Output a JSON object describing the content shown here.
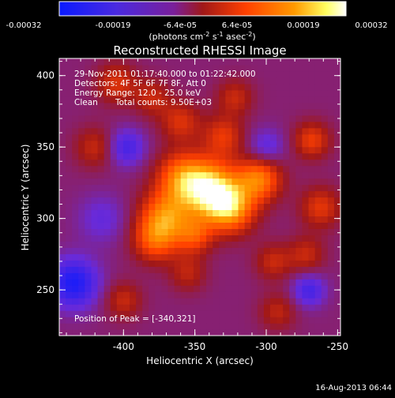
{
  "colorbar": {
    "ticks": [
      "-0.00032",
      "-0.00019",
      "-6.4e-05",
      "6.4e-05",
      "0.00019",
      "0.00032"
    ],
    "unit_parts": [
      "(photons cm",
      "-2",
      " s",
      "-1",
      " asec",
      "-2",
      ")"
    ]
  },
  "chart_data": {
    "type": "heatmap",
    "title": "Reconstructed RHESSI Image",
    "xlabel": "Heliocentric X (arcsec)",
    "ylabel": "Heliocentric Y (arcsec)",
    "xlim": [
      -445,
      -248
    ],
    "ylim": [
      218,
      412
    ],
    "vlim": [
      -0.00032,
      0.00032
    ],
    "xticks": [
      -400,
      -350,
      -300,
      -250
    ],
    "yticks": [
      250,
      300,
      350,
      400
    ],
    "colormap_stops": [
      "#0a1aff",
      "#6a2ad8",
      "#a01818",
      "#ff4000",
      "#ff9a00",
      "#ffff80",
      "#ffffff"
    ],
    "sources": [
      {
        "x": -340,
        "y": 321,
        "amp": 0.00032,
        "sigma": 14
      },
      {
        "x": -325,
        "y": 307,
        "amp": 0.00024,
        "sigma": 12
      },
      {
        "x": -305,
        "y": 328,
        "amp": 0.00022,
        "sigma": 11
      },
      {
        "x": -370,
        "y": 302,
        "amp": 0.00022,
        "sigma": 13
      },
      {
        "x": -360,
        "y": 330,
        "amp": 0.00018,
        "sigma": 12
      },
      {
        "x": -378,
        "y": 285,
        "amp": 0.00016,
        "sigma": 11
      },
      {
        "x": -350,
        "y": 288,
        "amp": 0.00014,
        "sigma": 9
      },
      {
        "x": -330,
        "y": 358,
        "amp": 0.00013,
        "sigma": 10
      },
      {
        "x": -360,
        "y": 368,
        "amp": 0.00012,
        "sigma": 10
      },
      {
        "x": -322,
        "y": 385,
        "amp": 0.0001,
        "sigma": 9
      },
      {
        "x": -380,
        "y": 385,
        "amp": 0.0001,
        "sigma": 9
      },
      {
        "x": -268,
        "y": 355,
        "amp": 0.00014,
        "sigma": 9
      },
      {
        "x": -262,
        "y": 308,
        "amp": 0.00013,
        "sigma": 10
      },
      {
        "x": -272,
        "y": 275,
        "amp": 0.0001,
        "sigma": 9
      },
      {
        "x": -295,
        "y": 270,
        "amp": 0.0001,
        "sigma": 9
      },
      {
        "x": -355,
        "y": 262,
        "amp": 9e-05,
        "sigma": 9
      },
      {
        "x": -405,
        "y": 395,
        "amp": 0.00012,
        "sigma": 10
      },
      {
        "x": -420,
        "y": 350,
        "amp": 0.0001,
        "sigma": 10
      },
      {
        "x": -400,
        "y": 243,
        "amp": 0.0001,
        "sigma": 9
      },
      {
        "x": -292,
        "y": 235,
        "amp": 9e-05,
        "sigma": 9
      },
      {
        "x": -435,
        "y": 255,
        "amp": -0.00022,
        "sigma": 12
      },
      {
        "x": -398,
        "y": 350,
        "amp": -0.00014,
        "sigma": 9
      },
      {
        "x": -270,
        "y": 250,
        "amp": -0.00014,
        "sigma": 8
      },
      {
        "x": -300,
        "y": 350,
        "amp": -0.0001,
        "sigma": 9
      },
      {
        "x": -415,
        "y": 300,
        "amp": -8e-05,
        "sigma": 12
      }
    ]
  },
  "annotations": {
    "time_range": "29-Nov-2011 01:17:40.000 to 01:22:42.000",
    "detectors": "Detectors: 4F 5F 6F 7F 8F, Att 0",
    "energy": "Energy Range: 12.0 - 25.0 keV",
    "algorithm": "Clean",
    "counts": "Total counts: 9.50E+03",
    "peak": "Position of Peak = [-340,321]"
  },
  "footer_date": "16-Aug-2013 06:44"
}
